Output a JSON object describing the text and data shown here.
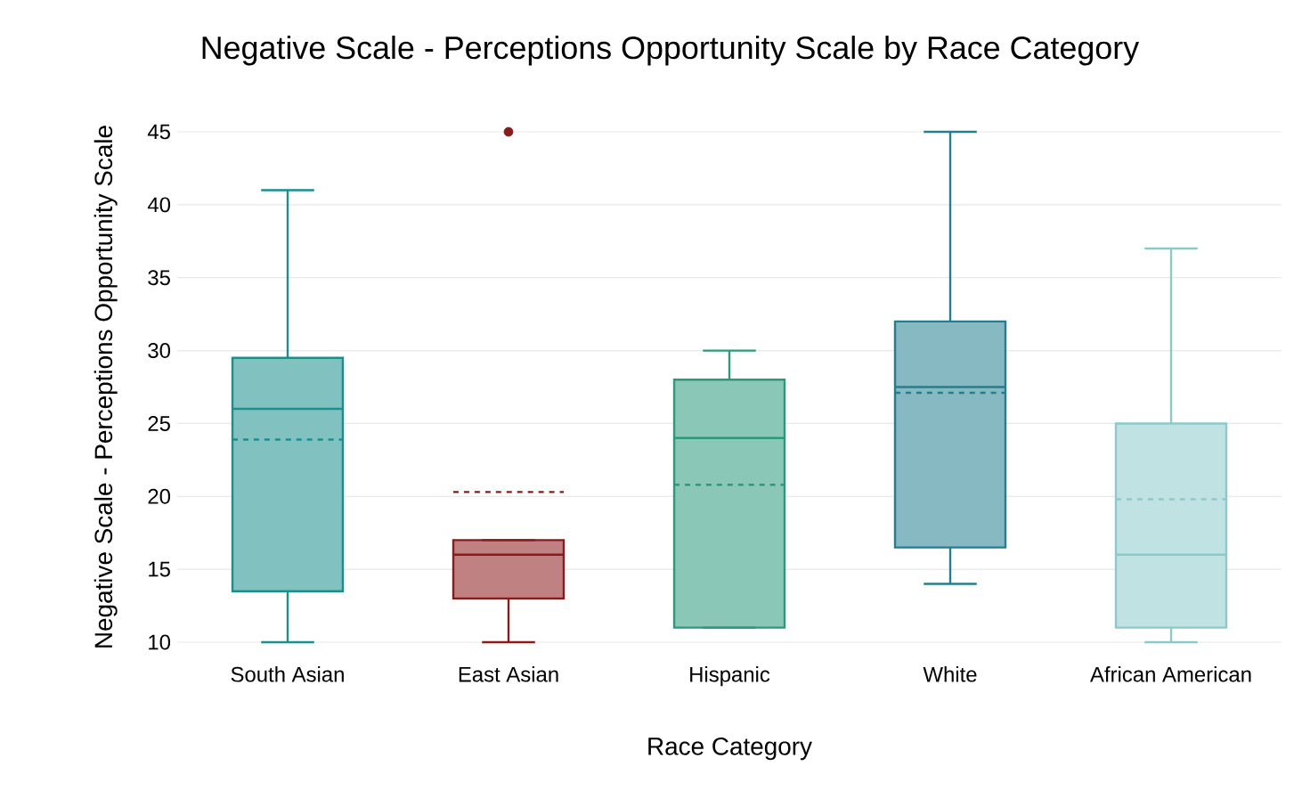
{
  "chart_data": {
    "type": "box",
    "title": "Negative Scale - Perceptions Opportunity Scale by Race Category",
    "xlabel": "Race Category",
    "ylabel": "Negative Scale - Perceptions Opportunity Scale",
    "categories": [
      "South Asian",
      "East Asian",
      "Hispanic",
      "White",
      "African American"
    ],
    "colors": [
      "#1a8f8c",
      "#8b1a1a",
      "#2a9a7a",
      "#237f8f",
      "#8ccaca"
    ],
    "boxes": [
      {
        "low": 10,
        "q1": 13.5,
        "median": 26,
        "q3": 29.5,
        "high": 41,
        "mean": 23.9
      },
      {
        "low": 10,
        "q1": 13,
        "median": 16,
        "q3": 17,
        "high": 17,
        "mean": 20.3,
        "outliers": [
          45
        ]
      },
      {
        "low": 11,
        "q1": 11,
        "median": 24,
        "q3": 28,
        "high": 30,
        "mean": 20.8
      },
      {
        "low": 14,
        "q1": 16.5,
        "median": 27.5,
        "q3": 32,
        "high": 45,
        "mean": 27.1
      },
      {
        "low": 10,
        "q1": 11,
        "median": 16,
        "q3": 25,
        "high": 37,
        "mean": 19.8
      }
    ],
    "ylim": [
      10,
      45
    ],
    "yticks": [
      10,
      15,
      20,
      25,
      30,
      35,
      40,
      45
    ],
    "grid": "y"
  }
}
